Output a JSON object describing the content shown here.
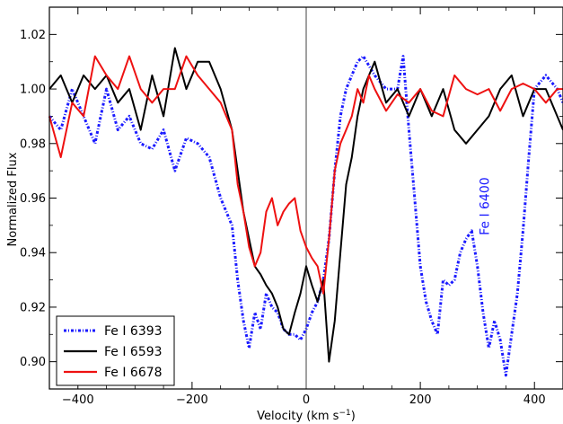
{
  "chart_data": {
    "type": "line",
    "xlabel": "Velocity (km s",
    "xlabel_sup": "−1",
    "xlabel_close": ")",
    "ylabel": "Normalized Flux",
    "xlim": [
      -450,
      450
    ],
    "ylim": [
      0.89,
      1.03
    ],
    "xticks": [
      -400,
      -200,
      0,
      200,
      400
    ],
    "xtick_labels": [
      "−400",
      "−200",
      "0",
      "200",
      "400"
    ],
    "yticks": [
      0.9,
      0.92,
      0.94,
      0.96,
      0.98,
      1.0,
      1.02
    ],
    "ytick_labels": [
      "0.90",
      "0.92",
      "0.94",
      "0.96",
      "0.98",
      "1.00",
      "1.02"
    ],
    "vline_x": 0,
    "vline_color": "#a0a0a0",
    "legend_position": "lower-left",
    "annotation": {
      "text": "Fe I 6400",
      "x": 320,
      "y": 0.957,
      "color": "#1a1aff"
    },
    "series": [
      {
        "name": "Fe I 6393",
        "color": "#1a1aff",
        "style": "dash-dot",
        "x": [
          -450,
          -430,
          -410,
          -390,
          -370,
          -350,
          -330,
          -310,
          -290,
          -270,
          -250,
          -230,
          -210,
          -190,
          -170,
          -150,
          -140,
          -130,
          -120,
          -110,
          -100,
          -90,
          -80,
          -70,
          -60,
          -50,
          -40,
          -30,
          -20,
          -10,
          0,
          10,
          20,
          30,
          40,
          50,
          60,
          70,
          80,
          90,
          100,
          120,
          140,
          160,
          170,
          180,
          190,
          200,
          210,
          220,
          230,
          240,
          250,
          260,
          270,
          280,
          290,
          300,
          310,
          320,
          330,
          340,
          350,
          360,
          370,
          380,
          390,
          400,
          420,
          440,
          450
        ],
        "y": [
          0.99,
          0.985,
          1.0,
          0.99,
          0.98,
          1.0,
          0.985,
          0.99,
          0.98,
          0.978,
          0.985,
          0.97,
          0.982,
          0.98,
          0.975,
          0.96,
          0.955,
          0.95,
          0.93,
          0.915,
          0.905,
          0.918,
          0.912,
          0.925,
          0.92,
          0.918,
          0.912,
          0.91,
          0.91,
          0.908,
          0.912,
          0.918,
          0.922,
          0.93,
          0.945,
          0.97,
          0.99,
          1.0,
          1.005,
          1.01,
          1.012,
          1.005,
          1.0,
          1.0,
          1.012,
          0.985,
          0.96,
          0.935,
          0.922,
          0.915,
          0.91,
          0.93,
          0.928,
          0.93,
          0.94,
          0.945,
          0.948,
          0.935,
          0.918,
          0.905,
          0.915,
          0.908,
          0.895,
          0.91,
          0.925,
          0.948,
          0.975,
          1.0,
          1.005,
          1.0,
          0.995
        ]
      },
      {
        "name": "Fe I 6593",
        "color": "#000000",
        "style": "solid",
        "x": [
          -450,
          -430,
          -410,
          -390,
          -370,
          -350,
          -330,
          -310,
          -290,
          -270,
          -250,
          -230,
          -210,
          -190,
          -170,
          -150,
          -130,
          -120,
          -110,
          -100,
          -90,
          -80,
          -70,
          -60,
          -50,
          -40,
          -30,
          -20,
          -10,
          0,
          10,
          20,
          30,
          40,
          50,
          60,
          70,
          80,
          90,
          100,
          110,
          120,
          140,
          160,
          180,
          200,
          220,
          240,
          260,
          280,
          300,
          320,
          340,
          360,
          380,
          400,
          420,
          440,
          450
        ],
        "y": [
          1.0,
          1.005,
          0.995,
          1.005,
          1.0,
          1.005,
          0.995,
          1.0,
          0.985,
          1.005,
          0.99,
          1.015,
          1.0,
          1.01,
          1.01,
          1.0,
          0.985,
          0.97,
          0.955,
          0.945,
          0.935,
          0.932,
          0.928,
          0.925,
          0.92,
          0.912,
          0.91,
          0.918,
          0.925,
          0.935,
          0.928,
          0.922,
          0.93,
          0.9,
          0.915,
          0.94,
          0.965,
          0.975,
          0.99,
          1.0,
          1.005,
          1.01,
          0.995,
          1.0,
          0.99,
          1.0,
          0.99,
          1.0,
          0.985,
          0.98,
          0.985,
          0.99,
          1.0,
          1.005,
          0.99,
          1.0,
          1.0,
          0.99,
          0.985
        ]
      },
      {
        "name": "Fe I 6678",
        "color": "#ee1111",
        "style": "solid",
        "x": [
          -450,
          -430,
          -410,
          -390,
          -370,
          -350,
          -330,
          -310,
          -290,
          -270,
          -250,
          -230,
          -210,
          -190,
          -170,
          -150,
          -130,
          -120,
          -110,
          -100,
          -90,
          -80,
          -70,
          -60,
          -50,
          -40,
          -30,
          -20,
          -10,
          0,
          10,
          20,
          30,
          40,
          50,
          60,
          70,
          80,
          90,
          100,
          110,
          120,
          140,
          160,
          180,
          200,
          220,
          240,
          260,
          280,
          300,
          320,
          340,
          360,
          380,
          400,
          420,
          440,
          450
        ],
        "y": [
          0.99,
          0.975,
          0.995,
          0.99,
          1.012,
          1.005,
          1.0,
          1.012,
          1.0,
          0.995,
          1.0,
          1.0,
          1.012,
          1.005,
          1.0,
          0.995,
          0.985,
          0.965,
          0.955,
          0.942,
          0.935,
          0.94,
          0.955,
          0.96,
          0.95,
          0.955,
          0.958,
          0.96,
          0.948,
          0.942,
          0.938,
          0.935,
          0.925,
          0.945,
          0.97,
          0.98,
          0.985,
          0.99,
          1.0,
          0.995,
          1.005,
          1.0,
          0.992,
          0.998,
          0.995,
          1.0,
          0.992,
          0.99,
          1.005,
          1.0,
          0.998,
          1.0,
          0.992,
          1.0,
          1.002,
          1.0,
          0.995,
          1.0,
          1.0
        ]
      }
    ]
  }
}
